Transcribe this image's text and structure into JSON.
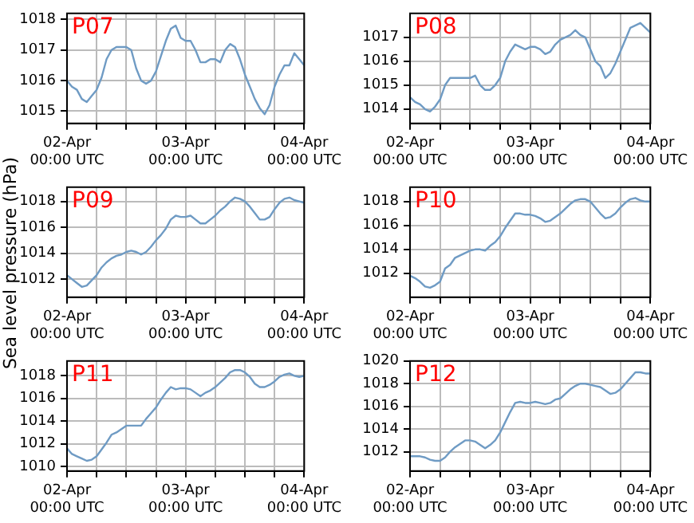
{
  "chart_data": [
    {
      "type": "line",
      "title": "P07",
      "color": "#6f9bc4",
      "categories": [
        "02-Apr\n00:00 UTC",
        null,
        null,
        null,
        null,
        null,
        null,
        null,
        null,
        null,
        null,
        null,
        null,
        null,
        null,
        null,
        null,
        null,
        null,
        null,
        null,
        null,
        null,
        null,
        "03-Apr\n00:00 UTC",
        null,
        null,
        null,
        null,
        null,
        null,
        null,
        null,
        null,
        null,
        null,
        null,
        null,
        null,
        null,
        null,
        null,
        null,
        null,
        null,
        null,
        null,
        null,
        "04-Apr\n00:00 UTC"
      ],
      "ylim": [
        1014.6,
        1018.2
      ],
      "yticks": [
        1015,
        1016,
        1017,
        1018
      ],
      "grid": true,
      "values": [
        1016.0,
        1015.8,
        1015.7,
        1015.4,
        1015.3,
        1015.5,
        1015.7,
        1016.1,
        1016.7,
        1017.0,
        1017.1,
        1017.1,
        1017.1,
        1017.0,
        1016.4,
        1016.0,
        1015.9,
        1016.0,
        1016.3,
        1016.8,
        1017.3,
        1017.7,
        1017.8,
        1017.4,
        1017.3,
        1017.3,
        1017.0,
        1016.6,
        1016.6,
        1016.7,
        1016.7,
        1016.6,
        1017.0,
        1017.2,
        1017.1,
        1016.7,
        1016.2,
        1015.8,
        1015.4,
        1015.1,
        1014.9,
        1015.2,
        1015.8,
        1016.2,
        1016.5,
        1016.5,
        1016.9,
        1016.7,
        1016.5
      ]
    },
    {
      "type": "line",
      "title": "P08",
      "color": "#6f9bc4",
      "categories": [
        "02-Apr\n00:00 UTC",
        null,
        null,
        null,
        null,
        null,
        null,
        null,
        null,
        null,
        null,
        null,
        null,
        null,
        null,
        null,
        null,
        null,
        null,
        null,
        null,
        null,
        null,
        null,
        "03-Apr\n00:00 UTC",
        null,
        null,
        null,
        null,
        null,
        null,
        null,
        null,
        null,
        null,
        null,
        null,
        null,
        null,
        null,
        null,
        null,
        null,
        null,
        null,
        null,
        null,
        null,
        "04-Apr\n00:00 UTC"
      ],
      "ylim": [
        1013.4,
        1018
      ],
      "yticks": [
        1014,
        1015,
        1016,
        1017
      ],
      "grid": true,
      "values": [
        1014.5,
        1014.3,
        1014.2,
        1014.0,
        1013.9,
        1014.1,
        1014.4,
        1015.0,
        1015.3,
        1015.3,
        1015.3,
        1015.3,
        1015.3,
        1015.4,
        1015.0,
        1014.8,
        1014.8,
        1015.0,
        1015.3,
        1016.0,
        1016.4,
        1016.7,
        1016.6,
        1016.5,
        1016.6,
        1016.6,
        1016.5,
        1016.3,
        1016.4,
        1016.7,
        1016.9,
        1017.0,
        1017.1,
        1017.3,
        1017.1,
        1017.0,
        1016.5,
        1016.0,
        1015.8,
        1015.3,
        1015.5,
        1015.9,
        1016.4,
        1016.9,
        1017.4,
        1017.5,
        1017.6,
        1017.4,
        1017.2
      ]
    },
    {
      "type": "line",
      "title": "P09",
      "ylabel": "Sea level pressure (hPa)",
      "color": "#6f9bc4",
      "categories": [
        "02-Apr\n00:00 UTC",
        null,
        null,
        null,
        null,
        null,
        null,
        null,
        null,
        null,
        null,
        null,
        null,
        null,
        null,
        null,
        null,
        null,
        null,
        null,
        null,
        null,
        null,
        null,
        "03-Apr\n00:00 UTC",
        null,
        null,
        null,
        null,
        null,
        null,
        null,
        null,
        null,
        null,
        null,
        null,
        null,
        null,
        null,
        null,
        null,
        null,
        null,
        null,
        null,
        null,
        null,
        "04-Apr\n00:00 UTC"
      ],
      "ylim": [
        1010.6,
        1019.1
      ],
      "yticks": [
        1012,
        1014,
        1016,
        1018
      ],
      "grid": true,
      "values": [
        1012.3,
        1012.0,
        1011.7,
        1011.4,
        1011.5,
        1011.9,
        1012.3,
        1012.9,
        1013.3,
        1013.6,
        1013.8,
        1013.9,
        1014.1,
        1014.2,
        1014.1,
        1013.9,
        1014.1,
        1014.5,
        1015.0,
        1015.4,
        1015.9,
        1016.6,
        1016.9,
        1016.8,
        1016.8,
        1016.9,
        1016.6,
        1016.3,
        1016.3,
        1016.6,
        1016.9,
        1017.3,
        1017.6,
        1018.0,
        1018.3,
        1018.2,
        1018.0,
        1017.6,
        1017.1,
        1016.6,
        1016.6,
        1016.8,
        1017.4,
        1017.9,
        1018.2,
        1018.3,
        1018.1,
        1018.0,
        1017.9
      ]
    },
    {
      "type": "line",
      "title": "P10",
      "color": "#6f9bc4",
      "categories": [
        "02-Apr\n00:00 UTC",
        null,
        null,
        null,
        null,
        null,
        null,
        null,
        null,
        null,
        null,
        null,
        null,
        null,
        null,
        null,
        null,
        null,
        null,
        null,
        null,
        null,
        null,
        null,
        "03-Apr\n00:00 UTC",
        null,
        null,
        null,
        null,
        null,
        null,
        null,
        null,
        null,
        null,
        null,
        null,
        null,
        null,
        null,
        null,
        null,
        null,
        null,
        null,
        null,
        null,
        null,
        "04-Apr\n00:00 UTC"
      ],
      "ylim": [
        1010,
        1019.2
      ],
      "yticks": [
        1012,
        1014,
        1016,
        1018
      ],
      "grid": true,
      "values": [
        1011.8,
        1011.6,
        1011.3,
        1010.9,
        1010.8,
        1011.0,
        1011.3,
        1012.4,
        1012.7,
        1013.3,
        1013.5,
        1013.7,
        1013.9,
        1014.0,
        1014.0,
        1013.9,
        1014.3,
        1014.6,
        1015.1,
        1015.8,
        1016.4,
        1017.0,
        1017.0,
        1016.9,
        1016.9,
        1016.8,
        1016.6,
        1016.3,
        1016.4,
        1016.7,
        1017.0,
        1017.4,
        1017.8,
        1018.1,
        1018.2,
        1018.2,
        1018.0,
        1017.5,
        1017.0,
        1016.6,
        1016.7,
        1017.0,
        1017.5,
        1017.9,
        1018.2,
        1018.3,
        1018.1,
        1018.0,
        1018.0
      ]
    },
    {
      "type": "line",
      "title": "P11",
      "color": "#6f9bc4",
      "categories": [
        "02-Apr\n00:00 UTC",
        null,
        null,
        null,
        null,
        null,
        null,
        null,
        null,
        null,
        null,
        null,
        null,
        null,
        null,
        null,
        null,
        null,
        null,
        null,
        null,
        null,
        null,
        null,
        "03-Apr\n00:00 UTC",
        null,
        null,
        null,
        null,
        null,
        null,
        null,
        null,
        null,
        null,
        null,
        null,
        null,
        null,
        null,
        null,
        null,
        null,
        null,
        null,
        null,
        null,
        null,
        "04-Apr\n00:00 UTC"
      ],
      "ylim": [
        1009.6,
        1019.3
      ],
      "yticks": [
        1010,
        1012,
        1014,
        1016,
        1018
      ],
      "grid": true,
      "values": [
        1011.6,
        1011.1,
        1010.9,
        1010.7,
        1010.5,
        1010.6,
        1010.9,
        1011.5,
        1012.1,
        1012.8,
        1013.0,
        1013.3,
        1013.6,
        1013.6,
        1013.6,
        1013.6,
        1014.2,
        1014.7,
        1015.2,
        1015.9,
        1016.5,
        1017.0,
        1016.8,
        1016.9,
        1016.9,
        1016.8,
        1016.5,
        1016.2,
        1016.5,
        1016.7,
        1017.0,
        1017.4,
        1017.8,
        1018.3,
        1018.5,
        1018.5,
        1018.3,
        1017.9,
        1017.3,
        1017.0,
        1017.0,
        1017.2,
        1017.5,
        1017.9,
        1018.1,
        1018.2,
        1018.0,
        1017.9,
        1018.0
      ]
    },
    {
      "type": "line",
      "title": "P12",
      "color": "#6f9bc4",
      "categories": [
        "02-Apr\n00:00 UTC",
        null,
        null,
        null,
        null,
        null,
        null,
        null,
        null,
        null,
        null,
        null,
        null,
        null,
        null,
        null,
        null,
        null,
        null,
        null,
        null,
        null,
        null,
        null,
        "03-Apr\n00:00 UTC",
        null,
        null,
        null,
        null,
        null,
        null,
        null,
        null,
        null,
        null,
        null,
        null,
        null,
        null,
        null,
        null,
        null,
        null,
        null,
        null,
        null,
        null,
        null,
        "04-Apr\n00:00 UTC"
      ],
      "ylim": [
        1010.3,
        1020
      ],
      "yticks": [
        1012,
        1014,
        1016,
        1018,
        1020
      ],
      "grid": true,
      "values": [
        1011.6,
        1011.6,
        1011.6,
        1011.5,
        1011.3,
        1011.2,
        1011.2,
        1011.5,
        1012.0,
        1012.4,
        1012.7,
        1013.0,
        1013.0,
        1012.9,
        1012.6,
        1012.3,
        1012.6,
        1013.0,
        1013.7,
        1014.6,
        1015.5,
        1016.3,
        1016.4,
        1016.3,
        1016.3,
        1016.4,
        1016.3,
        1016.2,
        1016.3,
        1016.6,
        1016.7,
        1017.1,
        1017.5,
        1017.8,
        1018.0,
        1018.0,
        1017.9,
        1017.8,
        1017.7,
        1017.4,
        1017.1,
        1017.2,
        1017.5,
        1018.0,
        1018.5,
        1019.0,
        1019.0,
        1018.9,
        1018.9
      ]
    }
  ]
}
